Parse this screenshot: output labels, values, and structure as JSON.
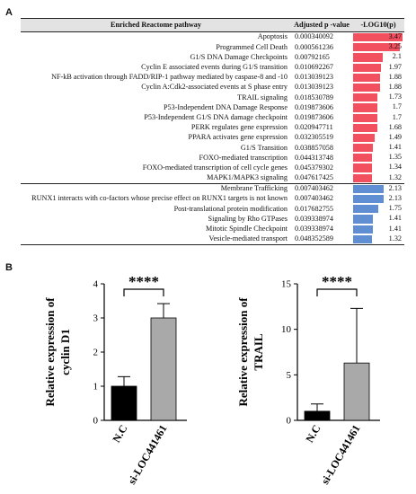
{
  "panels": {
    "a": "A",
    "b": "B"
  },
  "table": {
    "headers": {
      "pathway": "Enriched Reactome pathway",
      "p": "Adjusted p -value",
      "log": "-LOG10(p)"
    },
    "colors": {
      "up": "#f2505f",
      "down": "#5f8fd2",
      "header_bg": "#e3e3e3"
    },
    "rows": [
      {
        "pathway": "Apoptosis",
        "p": "0.000340092",
        "log": "3.47",
        "group": "up"
      },
      {
        "pathway": "Programmed Cell Death",
        "p": "0.000561236",
        "log": "3.25",
        "group": "up"
      },
      {
        "pathway": "G1/S DNA Damage Checkpoints",
        "p": "0.00792165",
        "log": "2.1",
        "group": "up"
      },
      {
        "pathway": "Cyclin E associated events during G1/S transition",
        "p": "0.010692267",
        "log": "1.97",
        "group": "up"
      },
      {
        "pathway": "NF-kB activation through FADD/RIP-1 pathway mediated by caspase-8 and -10",
        "p": "0.013039123",
        "log": "1.88",
        "group": "up"
      },
      {
        "pathway": "Cyclin A:Cdk2-associated events at S phase entry",
        "p": "0.013039123",
        "log": "1.88",
        "group": "up"
      },
      {
        "pathway": "TRAIL signaling",
        "p": "0.018530789",
        "log": "1.73",
        "group": "up"
      },
      {
        "pathway": "P53-Independent DNA Damage Response",
        "p": "0.019873606",
        "log": "1.7",
        "group": "up"
      },
      {
        "pathway": "P53-Independent G1/S DNA damage checkpoint",
        "p": "0.019873606",
        "log": "1.7",
        "group": "up"
      },
      {
        "pathway": "PERK regulates gene expression",
        "p": "0.020947711",
        "log": "1.68",
        "group": "up"
      },
      {
        "pathway": "PPARA activates gene expression",
        "p": "0.032305519",
        "log": "1.49",
        "group": "up"
      },
      {
        "pathway": "G1/S Transition",
        "p": "0.038857058",
        "log": "1.41",
        "group": "up"
      },
      {
        "pathway": "FOXO-mediated transcription",
        "p": "0.044313748",
        "log": "1.35",
        "group": "up"
      },
      {
        "pathway": "FOXO-mediated transcription of cell cycle genes",
        "p": "0.045379302",
        "log": "1.34",
        "group": "up"
      },
      {
        "pathway": "MAPK1/MAPK3 signaling",
        "p": "0.047617425",
        "log": "1.32",
        "group": "up"
      },
      {
        "pathway": "Membrane Trafficking",
        "p": "0.007403462",
        "log": "2.13",
        "group": "down"
      },
      {
        "pathway": "RUNX1 interacts with co-factors whose precise effect on RUNX1 targets is not known",
        "p": "0.007403462",
        "log": "2.13",
        "group": "down"
      },
      {
        "pathway": "Post-translational protein modification",
        "p": "0.017682755",
        "log": "1.75",
        "group": "down"
      },
      {
        "pathway": "Signaling by Rho GTPases",
        "p": "0.039338974",
        "log": "1.41",
        "group": "down"
      },
      {
        "pathway": "Mitotic Spindle Checkpoint",
        "p": "0.039338974",
        "log": "1.41",
        "group": "down"
      },
      {
        "pathway": "Vesicle-mediated transport",
        "p": "0.048352589",
        "log": "1.32",
        "group": "down"
      }
    ]
  },
  "chart_data": [
    {
      "type": "bar",
      "categories": [
        "N.C",
        "si-LOC441461"
      ],
      "values": [
        1.0,
        3.0
      ],
      "errors": [
        0.28,
        0.42
      ],
      "colors": [
        "#000000",
        "#a9a9a9"
      ],
      "ylabel": "Relative expression of cyclin D1",
      "ylim": [
        0,
        4
      ],
      "yticks": [
        "0",
        "1",
        "2",
        "3",
        "4"
      ],
      "significance": "****"
    },
    {
      "type": "bar",
      "categories": [
        "N.C",
        "si-LOC441461"
      ],
      "values": [
        1.0,
        6.3
      ],
      "errors": [
        0.8,
        6.0
      ],
      "colors": [
        "#000000",
        "#a9a9a9"
      ],
      "ylabel": "Relative expression of TRAIL",
      "ylim": [
        0,
        15
      ],
      "yticks": [
        "0",
        "5",
        "10",
        "15"
      ],
      "significance": "****"
    }
  ]
}
